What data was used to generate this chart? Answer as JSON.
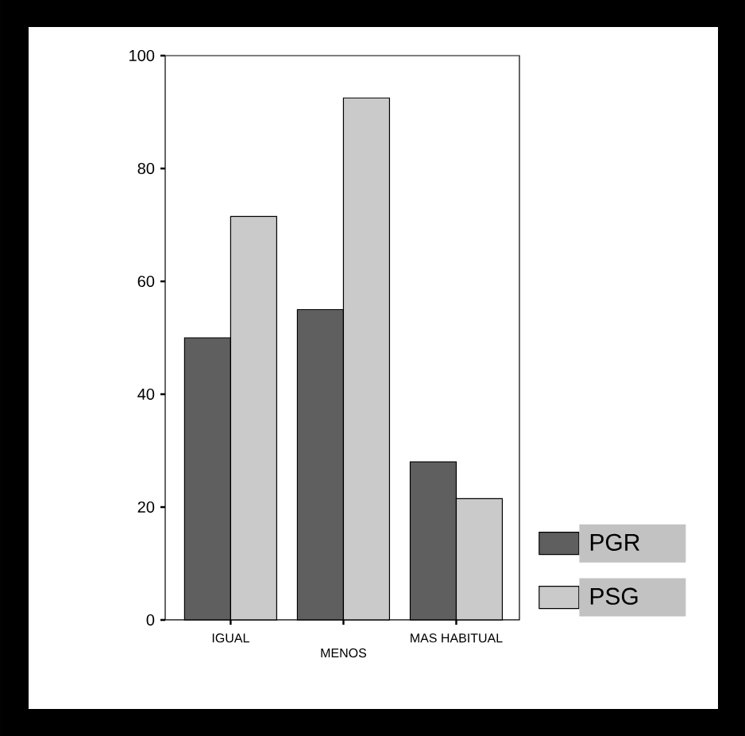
{
  "chart_data": {
    "type": "bar",
    "categories": [
      "IGUAL",
      "MENOS",
      "MAS HABITUAL"
    ],
    "series": [
      {
        "name": "PGR",
        "color": "#5f5f5f",
        "values": [
          50,
          55,
          28
        ]
      },
      {
        "name": "PSG",
        "color": "#cacaca",
        "values": [
          71.5,
          92.5,
          21.5
        ]
      }
    ],
    "ylim": [
      0,
      100
    ],
    "yticks": [
      0,
      20,
      40,
      60,
      80,
      100
    ],
    "grid": false,
    "legend": "bottom right"
  }
}
